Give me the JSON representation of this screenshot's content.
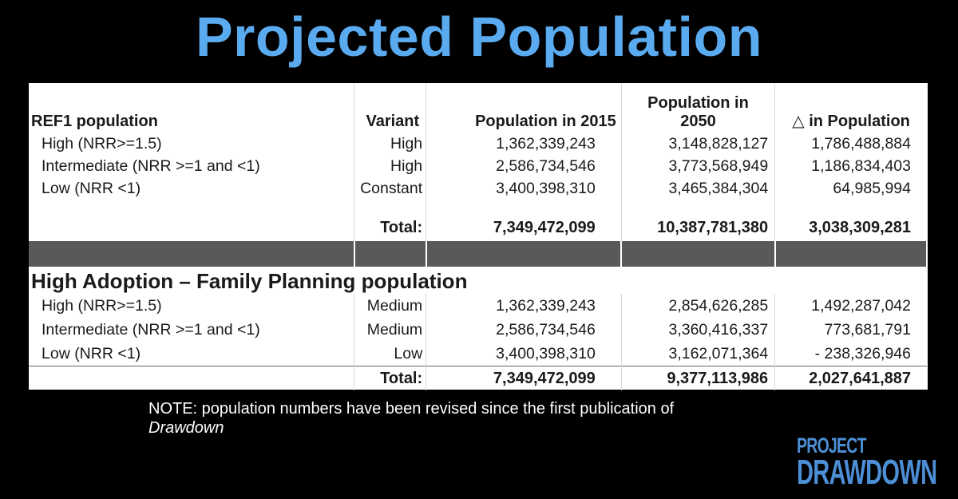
{
  "title": "Projected Population",
  "table": {
    "headers": {
      "label": "REF1 population",
      "variant": "Variant",
      "pop2015": "Population in 2015",
      "pop2050_line1": "Population in",
      "pop2050_line2": "2050",
      "delta_symbol": "△",
      "delta_text": " in Population"
    },
    "ref1_rows": [
      {
        "label": "High (NRR>=1.5)",
        "variant": "High",
        "pop2015": "1,362,339,243",
        "pop2050": "3,148,828,127",
        "delta": "1,786,488,884"
      },
      {
        "label": "Intermediate (NRR >=1 and <1)",
        "variant": "High",
        "pop2015": "2,586,734,546",
        "pop2050": "3,773,568,949",
        "delta": "1,186,834,403"
      },
      {
        "label": "Low (NRR <1)",
        "variant": "Constant",
        "pop2015": "3,400,398,310",
        "pop2050": "3,465,384,304",
        "delta": "64,985,994"
      }
    ],
    "ref1_total": {
      "label": "Total:",
      "pop2015": "7,349,472,099",
      "pop2050": "10,387,781,380",
      "delta": "3,038,309,281"
    },
    "section2_title": "High Adoption – Family Planning population",
    "ha_rows": [
      {
        "label": "High (NRR>=1.5)",
        "variant": "Medium",
        "pop2015": "1,362,339,243",
        "pop2050": "2,854,626,285",
        "delta": "1,492,287,042"
      },
      {
        "label": "Intermediate (NRR >=1 and <1)",
        "variant": "Medium",
        "pop2015": "2,586,734,546",
        "pop2050": "3,360,416,337",
        "delta": "773,681,791"
      },
      {
        "label": "Low (NRR <1)",
        "variant": "Low",
        "pop2015": "3,400,398,310",
        "pop2050": "3,162,071,364",
        "delta": "- 238,326,946"
      }
    ],
    "ha_total": {
      "label": "Total:",
      "pop2015": "7,349,472,099",
      "pop2050": "9,377,113,986",
      "delta": "2,027,641,887"
    }
  },
  "note": {
    "text": "NOTE: population numbers have been revised since the first publication of",
    "emphasis": "Drawdown"
  },
  "logo": {
    "line1": "PROJECT",
    "line2": "DRAWDOWN",
    "color": "#4d8fd6"
  },
  "colors": {
    "title": "#5aaaf0",
    "background": "#000000",
    "separator": "#595959"
  }
}
